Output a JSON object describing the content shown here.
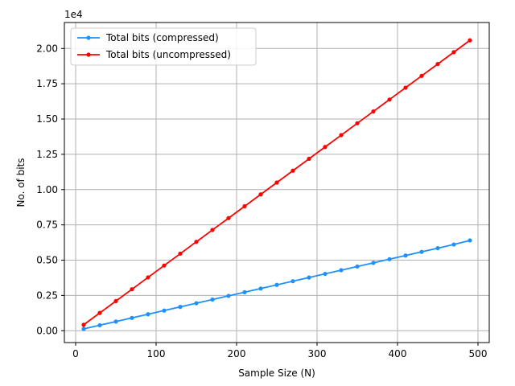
{
  "chart_data": {
    "type": "line",
    "title": "",
    "xlabel": "Sample Size (N)",
    "ylabel": "No. of bits",
    "y_offset_label": "1e4",
    "xlim": [
      -14,
      514
    ],
    "ylim": [
      -840,
      21840
    ],
    "x_ticks": [
      0,
      100,
      200,
      300,
      400,
      500
    ],
    "y_ticks": [
      0,
      2500,
      5000,
      7500,
      10000,
      12500,
      15000,
      17500,
      20000
    ],
    "y_tick_labels": [
      "0.00",
      "0.25",
      "0.50",
      "0.75",
      "1.00",
      "1.25",
      "1.50",
      "1.75",
      "2.00"
    ],
    "grid": true,
    "legend_position": "upper-left",
    "x": [
      10,
      30,
      50,
      70,
      90,
      110,
      130,
      150,
      170,
      190,
      210,
      230,
      250,
      270,
      290,
      310,
      330,
      350,
      370,
      390,
      410,
      430,
      450,
      470,
      490
    ],
    "series": [
      {
        "name": "Total bits (compressed)",
        "color": "#1e90ff",
        "values": [
          130,
          390,
          650,
          910,
          1170,
          1430,
          1690,
          1950,
          2210,
          2470,
          2730,
          2990,
          3250,
          3510,
          3770,
          4030,
          4290,
          4550,
          4810,
          5070,
          5330,
          5590,
          5850,
          6110,
          6400
        ]
      },
      {
        "name": "Total bits (uncompressed)",
        "color": "#ff0000",
        "values": [
          420,
          1260,
          2100,
          2940,
          3780,
          4620,
          5460,
          6300,
          7140,
          7980,
          8820,
          9660,
          10500,
          11340,
          12180,
          13020,
          13860,
          14700,
          15540,
          16380,
          17220,
          18060,
          18900,
          19740,
          20580
        ]
      }
    ]
  }
}
